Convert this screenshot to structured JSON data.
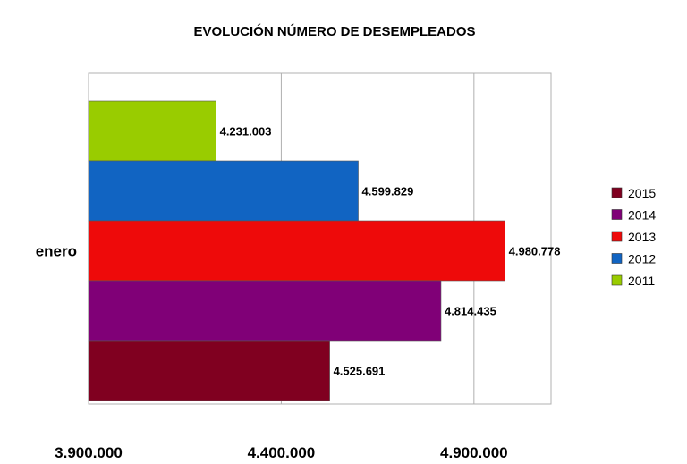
{
  "chart_data": {
    "type": "bar",
    "orientation": "horizontal",
    "title": "EVOLUCIÓN NÚMERO DE DESEMPLEADOS",
    "categories": [
      "enero"
    ],
    "series": [
      {
        "name": "2011",
        "values": [
          4231003
        ],
        "label": "4.231.003",
        "color": "#99cc00"
      },
      {
        "name": "2012",
        "values": [
          4599829
        ],
        "label": "4.599.829",
        "color": "#1164c2"
      },
      {
        "name": "2013",
        "values": [
          4980778
        ],
        "label": "4.980.778",
        "color": "#ee0a0a"
      },
      {
        "name": "2014",
        "values": [
          4814435
        ],
        "label": "4.814.435",
        "color": "#800077"
      },
      {
        "name": "2015",
        "values": [
          4525691
        ],
        "label": "4.525.691",
        "color": "#800020"
      }
    ],
    "xlim": [
      3900000,
      5100000
    ],
    "xticks": [
      {
        "value": 3900000,
        "label": "3.900.000"
      },
      {
        "value": 4400000,
        "label": "4.400.000"
      },
      {
        "value": 4900000,
        "label": "4.900.000"
      }
    ],
    "grid": true,
    "legend_position": "right",
    "legend_order": [
      "2015",
      "2014",
      "2013",
      "2012",
      "2011"
    ]
  }
}
